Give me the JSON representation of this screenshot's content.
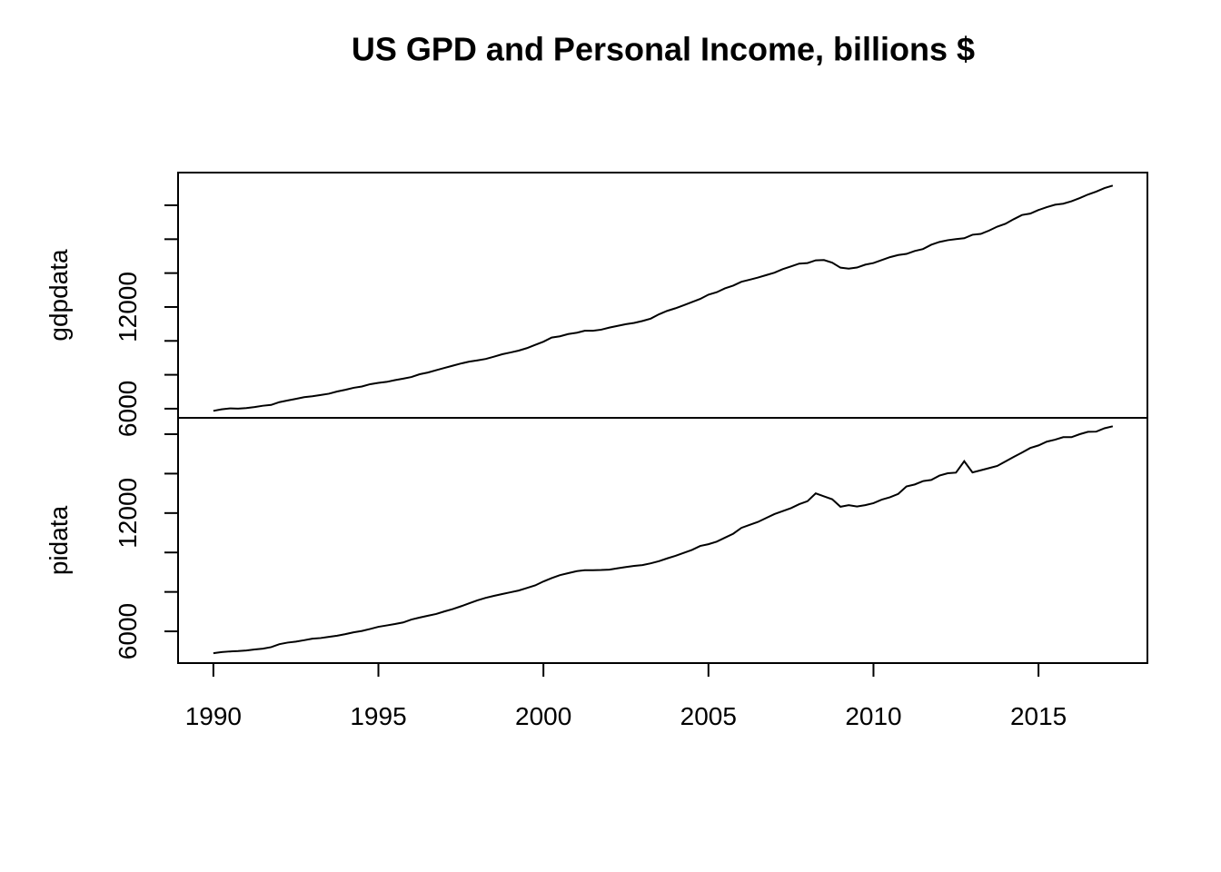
{
  "chart_data": {
    "type": "line",
    "title": "US GPD and Personal Income, billions $",
    "x": [
      1990,
      1990.25,
      1990.5,
      1990.75,
      1991,
      1991.25,
      1991.5,
      1991.75,
      1992,
      1992.25,
      1992.5,
      1992.75,
      1993,
      1993.25,
      1993.5,
      1993.75,
      1994,
      1994.25,
      1994.5,
      1994.75,
      1995,
      1995.25,
      1995.5,
      1995.75,
      1996,
      1996.25,
      1996.5,
      1996.75,
      1997,
      1997.25,
      1997.5,
      1997.75,
      1998,
      1998.25,
      1998.5,
      1998.75,
      1999,
      1999.25,
      1999.5,
      1999.75,
      2000,
      2000.25,
      2000.5,
      2000.75,
      2001,
      2001.25,
      2001.5,
      2001.75,
      2002,
      2002.25,
      2002.5,
      2002.75,
      2003,
      2003.25,
      2003.5,
      2003.75,
      2004,
      2004.25,
      2004.5,
      2004.75,
      2005,
      2005.25,
      2005.5,
      2005.75,
      2006,
      2006.25,
      2006.5,
      2006.75,
      2007,
      2007.25,
      2007.5,
      2007.75,
      2008,
      2008.25,
      2008.5,
      2008.75,
      2009,
      2009.25,
      2009.5,
      2009.75,
      2010,
      2010.25,
      2010.5,
      2010.75,
      2011,
      2011.25,
      2011.5,
      2011.75,
      2012,
      2012.25,
      2012.5,
      2012.75,
      2013,
      2013.25,
      2013.5,
      2013.75,
      2014,
      2014.25,
      2014.5,
      2014.75,
      2015,
      2015.25,
      2015.5,
      2015.75,
      2016,
      2016.25,
      2016.5,
      2016.75,
      2017,
      2017.25
    ],
    "xlim": [
      1988.93,
      2018.3
    ],
    "xticks": [
      1990,
      1995,
      2000,
      2005,
      2010,
      2015
    ],
    "panels": [
      {
        "ylabel": "gdpdata",
        "ylim": [
          5460,
          19930
        ],
        "yticks": [
          6000,
          12000
        ],
        "yticks_minor": [
          8000,
          10000,
          14000,
          16000,
          18000
        ],
        "values": [
          5872,
          5960,
          6015,
          6004,
          6035,
          6099,
          6174,
          6222,
          6386,
          6484,
          6578,
          6680,
          6730,
          6806,
          6883,
          7013,
          7115,
          7232,
          7309,
          7445,
          7522,
          7581,
          7683,
          7773,
          7869,
          8033,
          8132,
          8272,
          8404,
          8536,
          8665,
          8774,
          8849,
          8934,
          9069,
          9212,
          9316,
          9426,
          9572,
          9764,
          9951,
          10196,
          10270,
          10405,
          10475,
          10598,
          10598,
          10661,
          10784,
          10887,
          10985,
          11061,
          11175,
          11313,
          11568,
          11771,
          11924,
          12103,
          12287,
          12474,
          12727,
          12870,
          13100,
          13262,
          13489,
          13611,
          13737,
          13880,
          14023,
          14232,
          14395,
          14559,
          14591,
          14753,
          14770,
          14617,
          14320,
          14265,
          14328,
          14497,
          14593,
          14766,
          14940,
          15065,
          15133,
          15306,
          15419,
          15672,
          15839,
          15941,
          16003,
          16058,
          16262,
          16311,
          16506,
          16740,
          16910,
          17180,
          17427,
          17512,
          17720,
          17888,
          18034,
          18096,
          18236,
          18424,
          18637,
          18810,
          19017,
          19163
        ]
      },
      {
        "ylabel": "pidata",
        "ylim": [
          4390,
          16830
        ],
        "yticks": [
          6000,
          12000
        ],
        "yticks_minor": [
          8000,
          10000,
          14000,
          16000
        ],
        "values": [
          4890,
          4950,
          4980,
          5000,
          5030,
          5080,
          5120,
          5200,
          5350,
          5430,
          5480,
          5550,
          5630,
          5660,
          5720,
          5780,
          5860,
          5950,
          6020,
          6120,
          6230,
          6300,
          6370,
          6450,
          6600,
          6700,
          6790,
          6880,
          7010,
          7130,
          7270,
          7420,
          7570,
          7700,
          7800,
          7890,
          7980,
          8070,
          8200,
          8330,
          8530,
          8700,
          8850,
          8950,
          9050,
          9100,
          9100,
          9110,
          9130,
          9200,
          9260,
          9320,
          9360,
          9450,
          9560,
          9700,
          9830,
          9980,
          10130,
          10330,
          10420,
          10550,
          10750,
          10950,
          11250,
          11400,
          11550,
          11750,
          11950,
          12100,
          12250,
          12450,
          12600,
          13000,
          12850,
          12700,
          12320,
          12400,
          12330,
          12400,
          12500,
          12680,
          12800,
          12970,
          13350,
          13450,
          13620,
          13680,
          13900,
          14020,
          14050,
          14630,
          14060,
          14170,
          14280,
          14390,
          14620,
          14850,
          15070,
          15300,
          15430,
          15620,
          15720,
          15850,
          15850,
          16000,
          16120,
          16130,
          16300,
          16400
        ]
      }
    ]
  }
}
